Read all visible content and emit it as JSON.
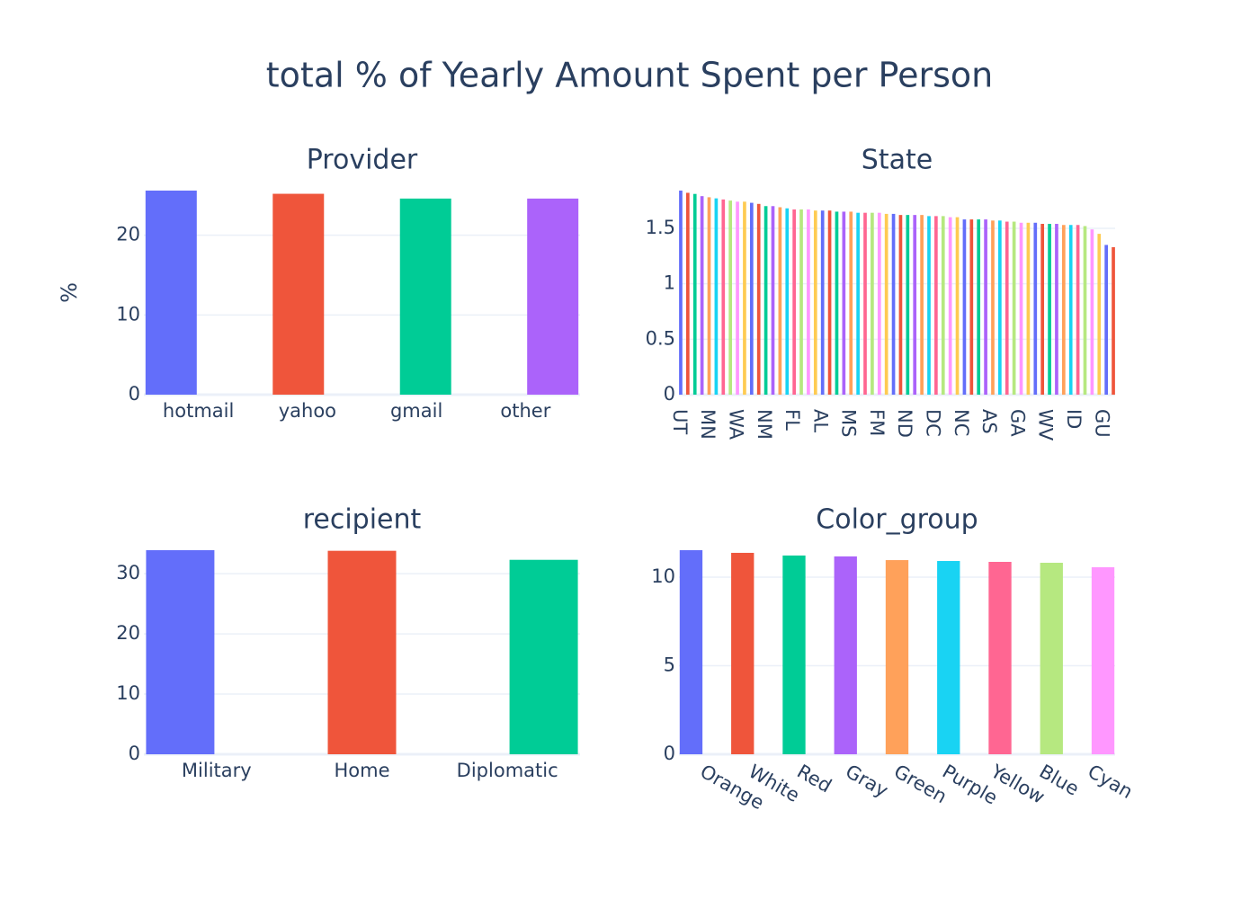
{
  "title": "total % of Yearly Amount Spent per Person",
  "chart_data": [
    {
      "type": "bar",
      "title": "Provider",
      "ylabel": "%",
      "categories": [
        "hotmail",
        "yahoo",
        "gmail",
        "other"
      ],
      "values": [
        25.6,
        25.2,
        24.6,
        24.6
      ],
      "colors": [
        "#636efa",
        "#EF553B",
        "#00cc96",
        "#ab63fa"
      ],
      "ylim": [
        0,
        25.6
      ],
      "yticks": [
        0,
        10,
        20
      ],
      "grid": true
    },
    {
      "type": "bar",
      "title": "State",
      "categories": [
        "UT",
        null,
        null,
        null,
        "MN",
        null,
        null,
        null,
        "WA",
        null,
        null,
        null,
        "NM",
        null,
        null,
        null,
        "FL",
        null,
        null,
        null,
        "AL",
        null,
        null,
        null,
        "MS",
        null,
        null,
        null,
        "FM",
        null,
        null,
        null,
        "ND",
        null,
        null,
        null,
        "DC",
        null,
        null,
        null,
        "NC",
        null,
        null,
        null,
        "AS",
        null,
        null,
        null,
        "GA",
        null,
        null,
        null,
        "WV",
        null,
        null,
        null,
        "ID",
        null,
        null,
        null,
        "GU",
        null
      ],
      "values": [
        1.84,
        1.82,
        1.81,
        1.79,
        1.78,
        1.77,
        1.76,
        1.75,
        1.74,
        1.74,
        1.73,
        1.72,
        1.7,
        1.7,
        1.69,
        1.68,
        1.67,
        1.67,
        1.67,
        1.66,
        1.66,
        1.66,
        1.65,
        1.65,
        1.65,
        1.64,
        1.64,
        1.64,
        1.64,
        1.63,
        1.63,
        1.62,
        1.62,
        1.62,
        1.62,
        1.61,
        1.61,
        1.61,
        1.6,
        1.6,
        1.58,
        1.58,
        1.58,
        1.58,
        1.57,
        1.57,
        1.56,
        1.56,
        1.55,
        1.55,
        1.55,
        1.54,
        1.54,
        1.54,
        1.53,
        1.53,
        1.53,
        1.52,
        1.49,
        1.45,
        1.35,
        1.33
      ],
      "colors": [
        "#636efa",
        "#EF553B",
        "#00cc96",
        "#ab63fa",
        "#FFA15A",
        "#19d3f3",
        "#FF6692",
        "#B6E880",
        "#FF97FF",
        "#FECB52"
      ],
      "ylim": [
        0,
        1.84
      ],
      "yticks": [
        0,
        0.5,
        1,
        1.5
      ],
      "grid": true
    },
    {
      "type": "bar",
      "title": "recipient",
      "categories": [
        "Military",
        "Home",
        "Diplomatic"
      ],
      "values": [
        33.9,
        33.8,
        32.3
      ],
      "colors": [
        "#636efa",
        "#EF553B",
        "#00cc96"
      ],
      "ylim": [
        0,
        33.9
      ],
      "yticks": [
        0,
        10,
        20,
        30
      ],
      "grid": true
    },
    {
      "type": "bar",
      "title": "Color_group",
      "categories": [
        "Orange",
        "White",
        "Red",
        "Gray",
        "Green",
        "Purple",
        "Yellow",
        "Blue",
        "Cyan"
      ],
      "values": [
        11.52,
        11.37,
        11.22,
        11.17,
        10.96,
        10.91,
        10.86,
        10.81,
        10.56
      ],
      "colors": [
        "#636efa",
        "#EF553B",
        "#00cc96",
        "#ab63fa",
        "#FFA15A",
        "#19d3f3",
        "#FF6692",
        "#B6E880",
        "#FF97FF"
      ],
      "ylim": [
        0,
        11.52
      ],
      "yticks": [
        0,
        5,
        10
      ],
      "grid": true
    }
  ]
}
